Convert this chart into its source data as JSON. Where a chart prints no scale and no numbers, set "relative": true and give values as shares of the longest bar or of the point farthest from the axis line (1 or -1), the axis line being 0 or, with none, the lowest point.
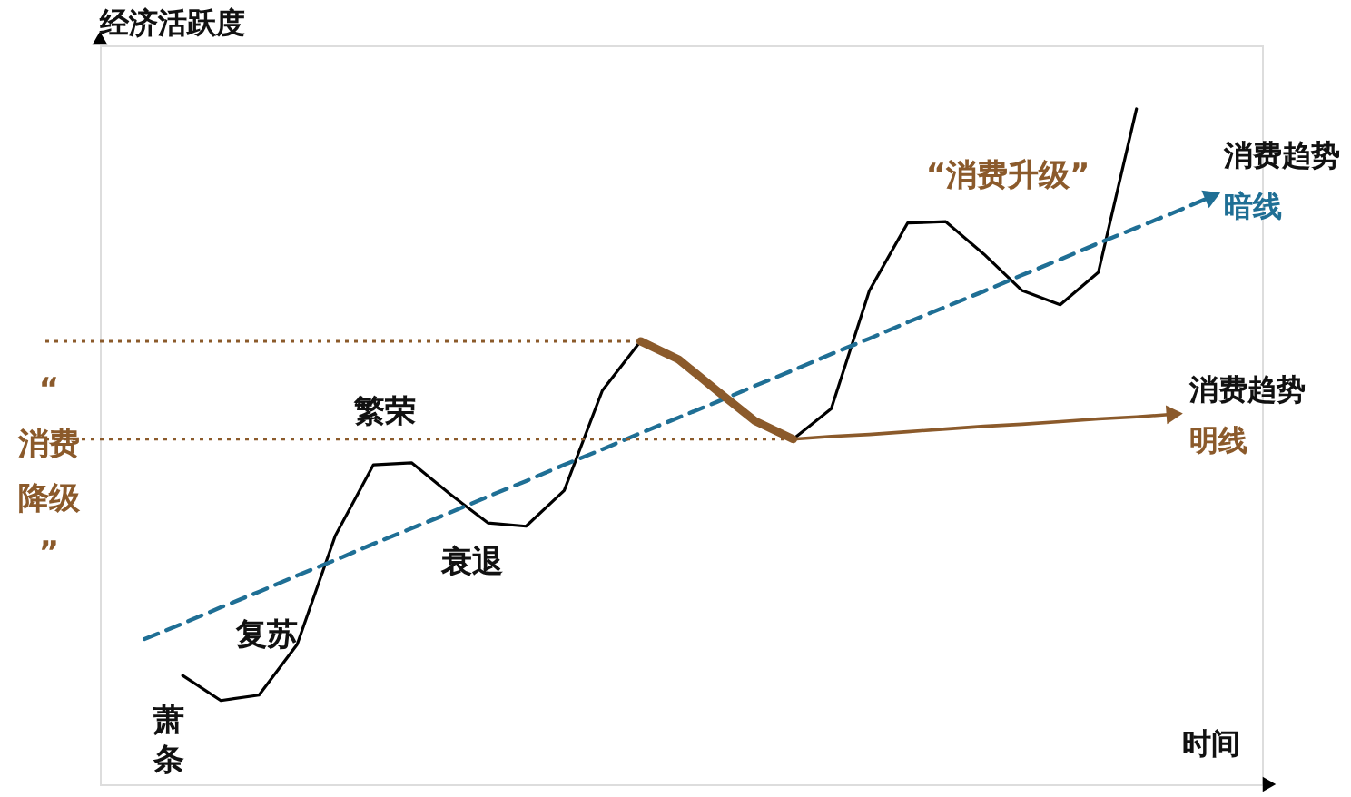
{
  "chart_data": {
    "type": "line",
    "relative": true,
    "xlabel": "时间",
    "ylabel": "经济活跃度",
    "categories": [
      null,
      null,
      null,
      null,
      null,
      null,
      null,
      null,
      null,
      null,
      null,
      null,
      null,
      null,
      null,
      null,
      null,
      null,
      null,
      null,
      null,
      null,
      null,
      null,
      null,
      null,
      null,
      null,
      null
    ],
    "series": [
      {
        "color": "#000000",
        "values": [
          null,
          0.161,
          0.124,
          0.132,
          0.207,
          0.368,
          0.473,
          0.476,
          0.43,
          0.387,
          0.382,
          0.435,
          0.583,
          0.656,
          0.629,
          0.583,
          0.538,
          0.511,
          0.556,
          0.731,
          0.831,
          0.833,
          0.785,
          0.731,
          0.71,
          0.758,
          1.0,
          null,
          null
        ]
      },
      {
        "name": "消费趋势暗线",
        "color": "#1f6f95",
        "line_style": "dashed",
        "values": [
          0.215,
          0.238,
          0.262,
          0.285,
          0.309,
          0.332,
          0.356,
          0.379,
          0.402,
          0.426,
          0.449,
          0.473,
          0.496,
          0.52,
          0.543,
          0.566,
          0.59,
          0.613,
          0.637,
          0.66,
          0.684,
          0.707,
          0.73,
          0.754,
          0.777,
          0.801,
          0.824,
          0.847,
          0.871
        ]
      },
      {
        "color": "#8b5a2b",
        "values": [
          null,
          null,
          null,
          null,
          null,
          null,
          null,
          null,
          null,
          null,
          null,
          null,
          null,
          0.656,
          0.629,
          0.583,
          0.538,
          0.511,
          null,
          null,
          null,
          null,
          null,
          null,
          null,
          null,
          null,
          null,
          null
        ]
      },
      {
        "name": "消费趋势明线",
        "color": "#8b5a2b",
        "values": [
          null,
          null,
          null,
          null,
          null,
          null,
          null,
          null,
          null,
          null,
          null,
          null,
          null,
          null,
          null,
          null,
          null,
          0.511,
          0.515,
          0.518,
          0.522,
          0.526,
          0.53,
          0.533,
          0.537,
          0.541,
          0.544,
          0.548,
          null
        ]
      }
    ],
    "ref_lines": [
      {
        "axis": "y",
        "value": 0.656,
        "color": "#8b5a2b",
        "line_style": "dotted"
      },
      {
        "axis": "y",
        "value": 0.511,
        "color": "#8b5a2b",
        "line_style": "dotted"
      }
    ],
    "annotations": [
      "萧条",
      "复苏",
      "繁荣",
      "衰退",
      "“消费升级”",
      "“消费降级”"
    ]
  }
}
